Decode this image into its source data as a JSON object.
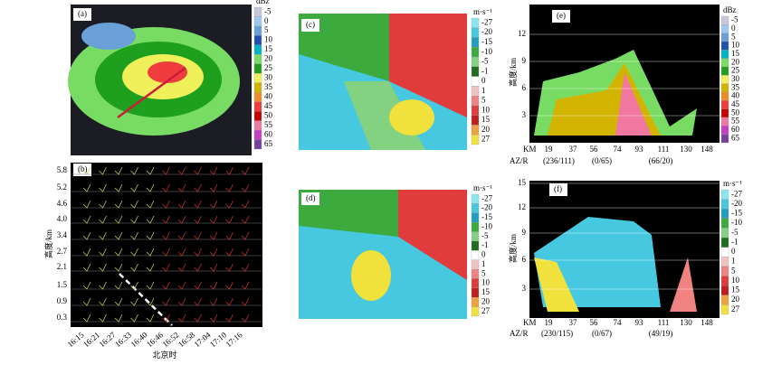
{
  "panels": {
    "a": {
      "label": "(a)",
      "colorbar": {
        "unit": "dBz",
        "ticks": [
          "-5",
          "0",
          "5",
          "10",
          "15",
          "20",
          "25",
          "30",
          "35",
          "40",
          "45",
          "50",
          "55",
          "60",
          "65"
        ],
        "colors": [
          "#c8c8dc",
          "#9ec8f0",
          "#6aa0d8",
          "#1e50b4",
          "#00b4c8",
          "#78dc64",
          "#1ea01e",
          "#f0f05a",
          "#d2b400",
          "#f08c28",
          "#f03c3c",
          "#c80000",
          "#f078a0",
          "#c83cc8",
          "#7840a0"
        ]
      }
    },
    "b": {
      "label": "(b)",
      "y_label": "高度/km",
      "y_ticks": [
        "5.8",
        "5.2",
        "4.6",
        "4.0",
        "3.4",
        "2.7",
        "2.1",
        "1.5",
        "0.9",
        "0.3"
      ],
      "x_ticks": [
        "16:15",
        "16:21",
        "16:27",
        "16:33",
        "16:40",
        "16:46",
        "16:52",
        "16:58",
        "17:04",
        "17:10",
        "17:16"
      ],
      "x_label": "北京时"
    },
    "c": {
      "label": "(c)",
      "colorbar": {
        "unit": "m·s⁻¹",
        "ticks": [
          "-27",
          "-20",
          "-15",
          "-10",
          "-5",
          "-1",
          "0",
          "1",
          "5",
          "10",
          "15",
          "20",
          "27"
        ],
        "colors": [
          "#8ce6f0",
          "#46c8e1",
          "#1ea0c3",
          "#3caa3c",
          "#82d282",
          "#1e6e1e",
          "#ffffff",
          "#f0c3c3",
          "#f08282",
          "#e13c3c",
          "#c31e1e",
          "#f0a03c",
          "#f0e13c"
        ]
      }
    },
    "d": {
      "label": "(d)",
      "colorbar": {
        "unit": "m·s⁻¹",
        "ticks": [
          "-27",
          "-20",
          "-15",
          "-10",
          "-5",
          "-1",
          "0",
          "1",
          "5",
          "10",
          "15",
          "20",
          "27"
        ],
        "colors": [
          "#8ce6f0",
          "#46c8e1",
          "#1ea0c3",
          "#3caa3c",
          "#82d282",
          "#1e6e1e",
          "#ffffff",
          "#f0c3c3",
          "#f08282",
          "#e13c3c",
          "#c31e1e",
          "#f0a03c",
          "#f0e13c"
        ]
      }
    },
    "e": {
      "label": "(e)",
      "y_label": "高度/km",
      "y_ticks": [
        "12",
        "9",
        "6",
        "3"
      ],
      "x_ticks": [
        "KM",
        "19",
        "37",
        "56",
        "74",
        "93",
        "111",
        "130",
        "148"
      ],
      "az_label": "AZ/R",
      "az_values": [
        "(236/111)",
        "(0/65)",
        "(66/20)"
      ],
      "colorbar": {
        "unit": "dBz",
        "ticks": [
          "-5",
          "0",
          "5",
          "10",
          "15",
          "20",
          "25",
          "30",
          "35",
          "40",
          "45",
          "50",
          "55",
          "60",
          "65"
        ],
        "colors": [
          "#c8c8dc",
          "#9ec8f0",
          "#6aa0d8",
          "#1e50b4",
          "#00b4c8",
          "#78dc64",
          "#1ea01e",
          "#f0f05a",
          "#d2b400",
          "#f08c28",
          "#f03c3c",
          "#c80000",
          "#f078a0",
          "#c83cc8",
          "#7840a0"
        ]
      }
    },
    "f": {
      "label": "(f)",
      "y_label": "高度/km",
      "y_ticks": [
        "15",
        "12",
        "9",
        "6",
        "3"
      ],
      "x_ticks": [
        "KM",
        "19",
        "37",
        "56",
        "74",
        "93",
        "111",
        "130",
        "148"
      ],
      "az_label": "AZ/R",
      "az_values": [
        "(230/115)",
        "(0/67)",
        "(49/19)"
      ],
      "colorbar": {
        "unit": "m·s⁻¹",
        "ticks": [
          "-27",
          "-20",
          "-15",
          "-10",
          "-5",
          "-1",
          "0",
          "1",
          "5",
          "10",
          "15",
          "20",
          "27"
        ],
        "colors": [
          "#8ce6f0",
          "#46c8e1",
          "#1ea0c3",
          "#3caa3c",
          "#82d282",
          "#1e6e1e",
          "#ffffff",
          "#f0c3c3",
          "#f08282",
          "#e13c3c",
          "#c31e1e",
          "#f0a03c",
          "#f0e13c"
        ]
      }
    }
  }
}
